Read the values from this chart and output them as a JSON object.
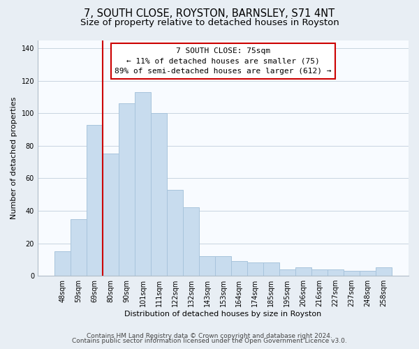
{
  "title": "7, SOUTH CLOSE, ROYSTON, BARNSLEY, S71 4NT",
  "subtitle": "Size of property relative to detached houses in Royston",
  "xlabel": "Distribution of detached houses by size in Royston",
  "ylabel": "Number of detached properties",
  "bar_color": "#c8dcee",
  "bar_edge_color": "#a8c4dc",
  "categories": [
    "48sqm",
    "59sqm",
    "69sqm",
    "80sqm",
    "90sqm",
    "101sqm",
    "111sqm",
    "122sqm",
    "132sqm",
    "143sqm",
    "153sqm",
    "164sqm",
    "174sqm",
    "185sqm",
    "195sqm",
    "206sqm",
    "216sqm",
    "227sqm",
    "237sqm",
    "248sqm",
    "258sqm"
  ],
  "values": [
    15,
    35,
    93,
    75,
    106,
    113,
    100,
    53,
    42,
    12,
    12,
    9,
    8,
    8,
    4,
    5,
    4,
    4,
    3,
    3,
    5
  ],
  "ylim": [
    0,
    145
  ],
  "yticks": [
    0,
    20,
    40,
    60,
    80,
    100,
    120,
    140
  ],
  "annotation_line1": "7 SOUTH CLOSE: 75sqm",
  "annotation_line2": "← 11% of detached houses are smaller (75)",
  "annotation_line3": "89% of semi-detached houses are larger (612) →",
  "annotation_box_color": "#ffffff",
  "annotation_box_edge_color": "#cc0000",
  "vline_color": "#cc0000",
  "vline_x_index": 2.5,
  "footer_line1": "Contains HM Land Registry data © Crown copyright and database right 2024.",
  "footer_line2": "Contains public sector information licensed under the Open Government Licence v3.0.",
  "background_color": "#e8eef4",
  "plot_background_color": "#f8fbff",
  "grid_color": "#c8d4e0",
  "title_fontsize": 10.5,
  "subtitle_fontsize": 9.5,
  "axis_fontsize": 8,
  "tick_fontsize": 7,
  "footer_fontsize": 6.5,
  "annotation_fontsize": 8
}
